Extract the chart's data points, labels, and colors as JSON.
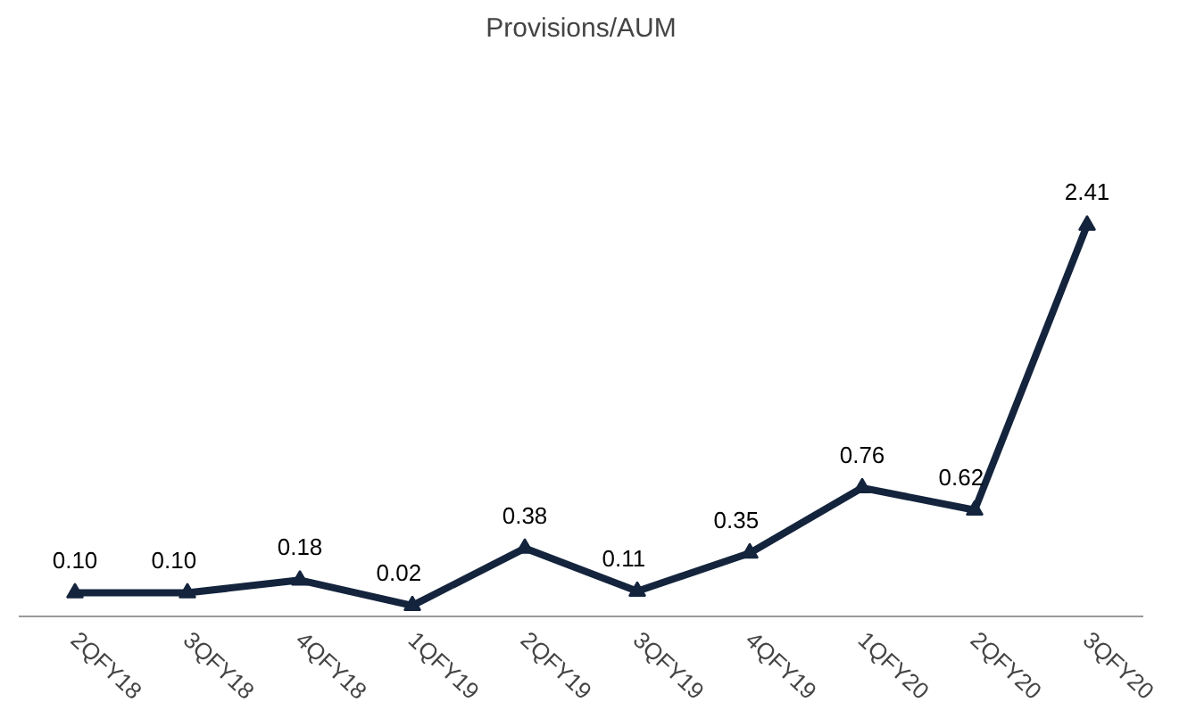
{
  "chart_data": {
    "type": "line",
    "title": "Provisions/AUM",
    "categories": [
      "2QFY18",
      "3QFY18",
      "4QFY18",
      "1QFY19",
      "2QFY19",
      "3QFY19",
      "4QFY19",
      "1QFY20",
      "2QFY20",
      "3QFY20"
    ],
    "series": [
      {
        "color": "#14243d",
        "values": [
          0.1,
          0.1,
          0.18,
          0.02,
          0.38,
          0.11,
          0.35,
          0.76,
          0.62,
          2.41
        ],
        "value_labels": [
          "0.10",
          "0.10",
          "0.18",
          "0.02",
          "0.38",
          "0.11",
          "0.35",
          "0.76",
          "0.62",
          "2.41"
        ]
      }
    ],
    "marker": "triangle",
    "line_style": "solid",
    "tick_labels": "x"
  }
}
